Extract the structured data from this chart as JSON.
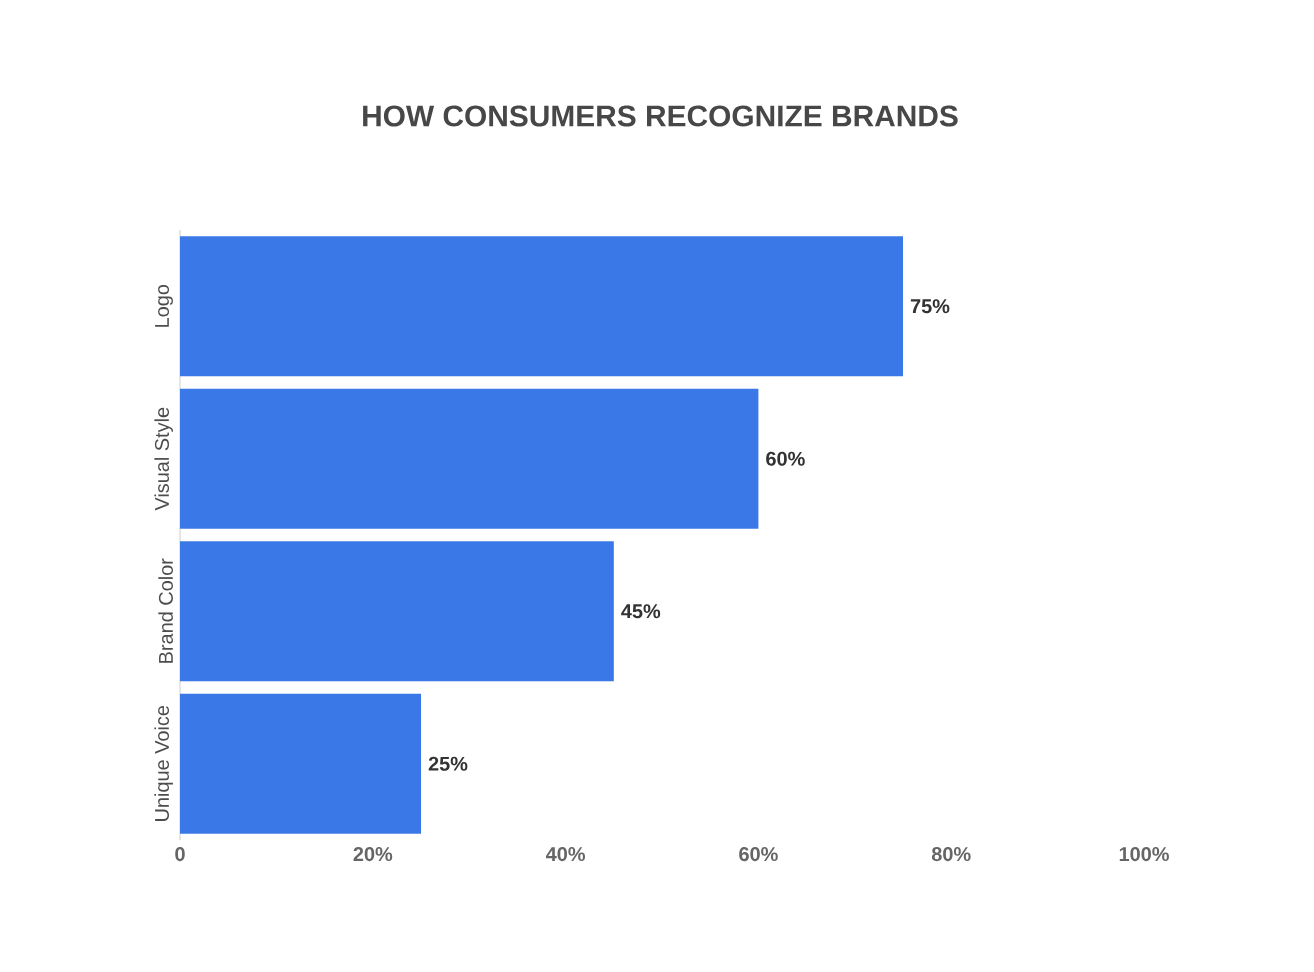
{
  "chart_data": {
    "type": "bar",
    "orientation": "horizontal",
    "title": "HOW CONSUMERS RECOGNIZE BRANDS",
    "categories": [
      "Logo",
      "Visual Style",
      "Brand Color",
      "Unique Voice"
    ],
    "values": [
      75,
      60,
      45,
      25
    ],
    "value_labels": [
      "75%",
      "60%",
      "45%",
      "25%"
    ],
    "color": "#3b78e7",
    "xlim": [
      0,
      100
    ],
    "xticks": [
      0,
      {
        "value": 20,
        "label": "20%"
      },
      {
        "value": 40,
        "label": "40%"
      },
      {
        "value": 60,
        "label": "60%"
      },
      {
        "value": 80,
        "label": "80%"
      },
      {
        "value": 100,
        "label": "100%"
      }
    ],
    "grid": false
  }
}
